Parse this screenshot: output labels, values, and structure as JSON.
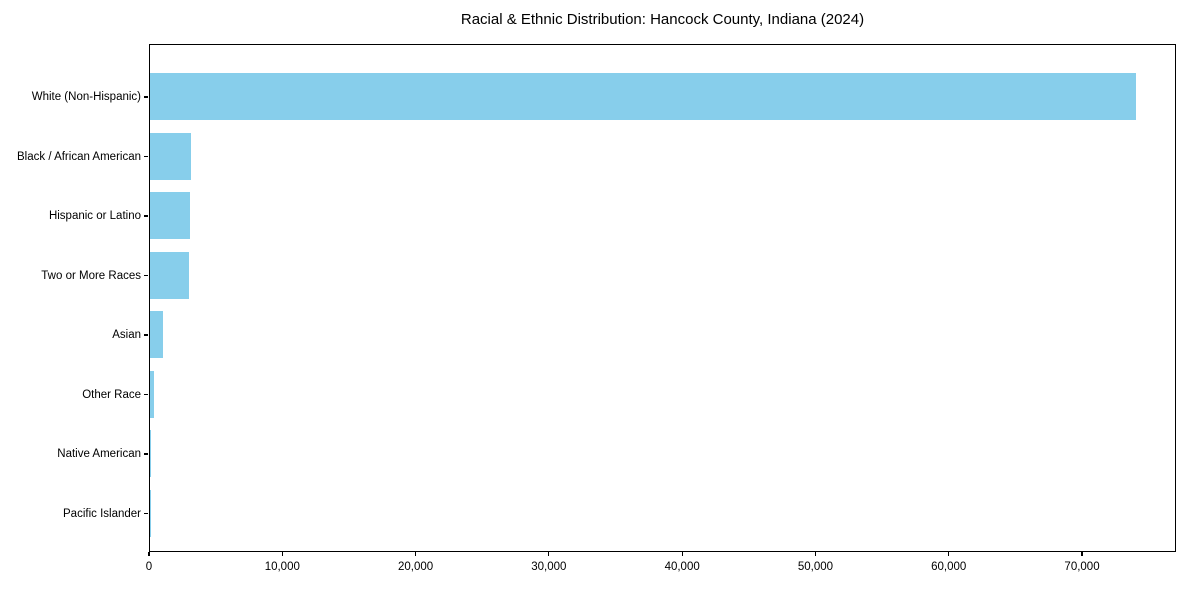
{
  "figure": {
    "background": "#ffffff"
  },
  "chart_data": {
    "type": "bar",
    "orientation": "horizontal",
    "title": "Racial & Ethnic Distribution: Hancock County, Indiana (2024)",
    "categories": [
      "White (Non-Hispanic)",
      "Black / African American",
      "Hispanic or Latino",
      "Two or More Races",
      "Asian",
      "Other Race",
      "Native American",
      "Pacific Islander"
    ],
    "values": [
      74000,
      3100,
      3000,
      2900,
      1000,
      320,
      100,
      30
    ],
    "xlabel": "",
    "ylabel": "",
    "xlim": [
      0,
      77050
    ],
    "x_ticks": [
      0,
      10000,
      20000,
      30000,
      40000,
      50000,
      60000,
      70000
    ],
    "x_tick_labels": [
      "0",
      "10,000",
      "20,000",
      "30,000",
      "40,000",
      "50,000",
      "60,000",
      "70,000"
    ],
    "grid": false,
    "legend": "none",
    "bar_color": "#87CEEB",
    "axis_color": "#000000",
    "text_color": "#000000"
  }
}
